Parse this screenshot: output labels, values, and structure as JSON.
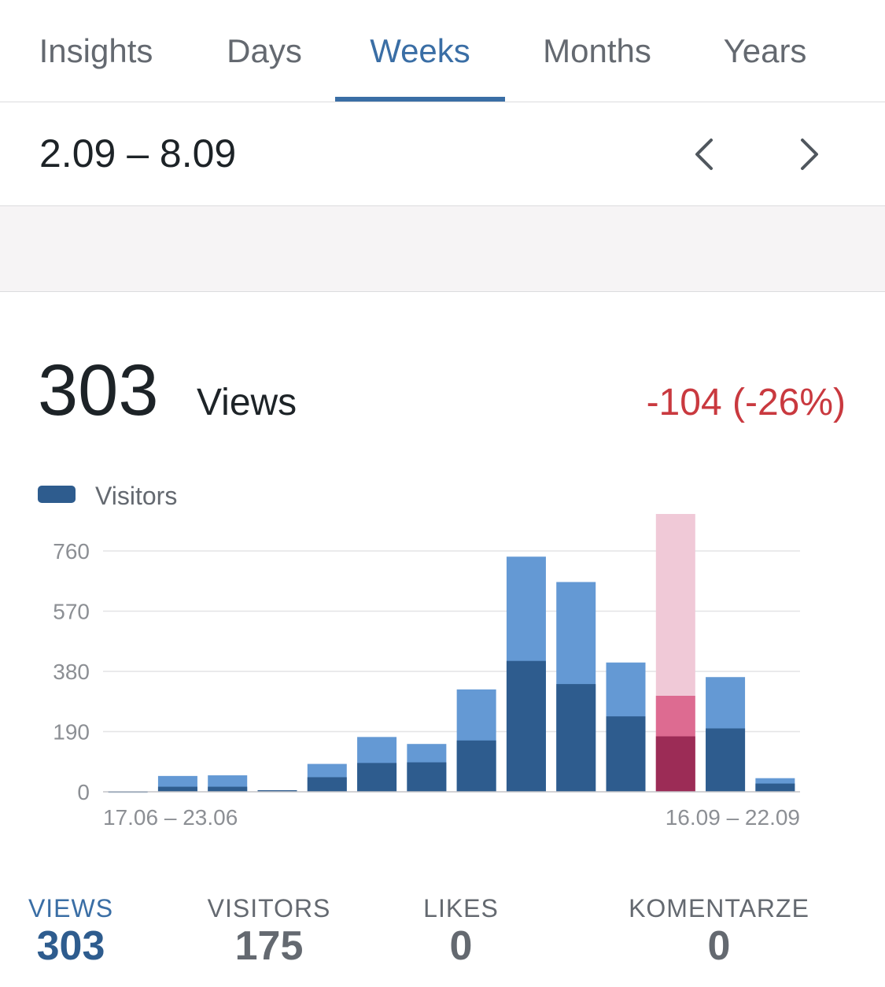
{
  "tabs": [
    {
      "label": "Insights",
      "active": false
    },
    {
      "label": "Days",
      "active": false
    },
    {
      "label": "Weeks",
      "active": true
    },
    {
      "label": "Months",
      "active": false
    },
    {
      "label": "Years",
      "active": false
    }
  ],
  "period": {
    "label": "2.09 – 8.09",
    "prev_icon": "chevron-left-icon",
    "next_icon": "chevron-right-icon"
  },
  "summary": {
    "value": "303",
    "unit": "Views",
    "delta": "-104 (-26%)"
  },
  "colors": {
    "accent": "#3a6ea5",
    "views_bar": "#6499d4",
    "visitors_bar": "#2e5c8e",
    "selected_views_bar": "#dd6b91",
    "selected_visitors_bar": "#9c2c56",
    "selected_highlight": "#f0c9d7",
    "negative": "#c9393f"
  },
  "legend": {
    "label": "Visitors",
    "color": "#2e5c8e"
  },
  "chart_data": {
    "type": "bar",
    "y_ticks": [
      "760",
      "570",
      "380",
      "190",
      "0"
    ],
    "ylim": [
      0,
      760
    ],
    "x_tick_labels": [
      "17.06 – 23.06",
      "16.09 – 22.09"
    ],
    "selected_index": 11,
    "series": [
      {
        "name": "Views",
        "values": [
          2,
          50,
          52,
          5,
          88,
          173,
          151,
          323,
          742,
          662,
          408,
          303,
          362,
          43
        ]
      },
      {
        "name": "Visitors",
        "values": [
          1,
          16,
          16,
          5,
          46,
          91,
          93,
          162,
          413,
          340,
          238,
          175,
          200,
          26
        ]
      }
    ]
  },
  "stats": [
    {
      "label": "VIEWS",
      "value": "303",
      "active": true
    },
    {
      "label": "VISITORS",
      "value": "175",
      "active": false
    },
    {
      "label": "LIKES",
      "value": "0",
      "active": false
    },
    {
      "label": "KOMENTARZE",
      "value": "0",
      "active": false
    }
  ]
}
